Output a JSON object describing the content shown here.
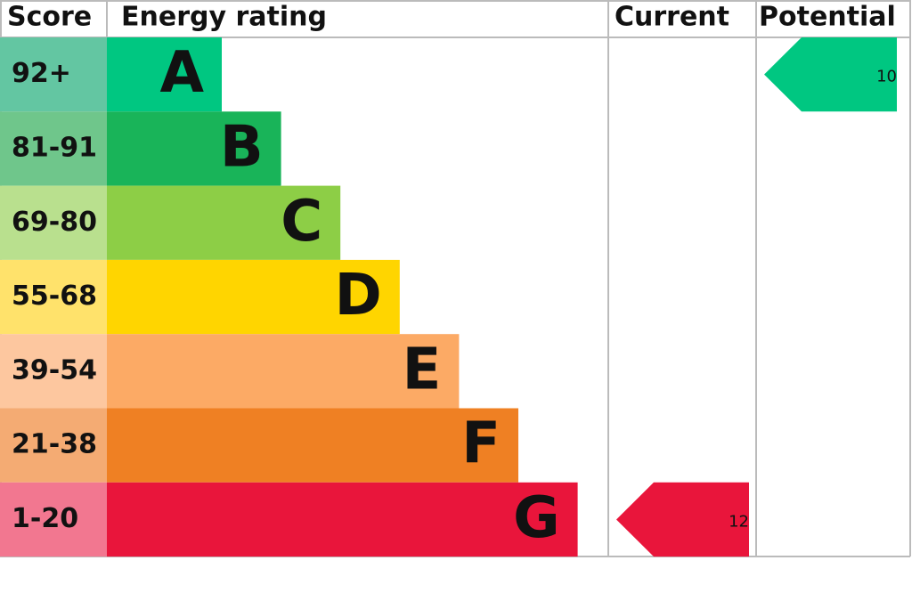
{
  "header": {
    "score": "Score",
    "rating": "Energy rating",
    "current": "Current",
    "potential": "Potential"
  },
  "bands": [
    {
      "score": "92+",
      "letter": "A"
    },
    {
      "score": "81-91",
      "letter": "B"
    },
    {
      "score": "69-80",
      "letter": "C"
    },
    {
      "score": "55-68",
      "letter": "D"
    },
    {
      "score": "39-54",
      "letter": "E"
    },
    {
      "score": "21-38",
      "letter": "F"
    },
    {
      "score": "1-20",
      "letter": "G"
    }
  ],
  "current": {
    "value": 12
  },
  "potential": {
    "value": 10
  }
}
